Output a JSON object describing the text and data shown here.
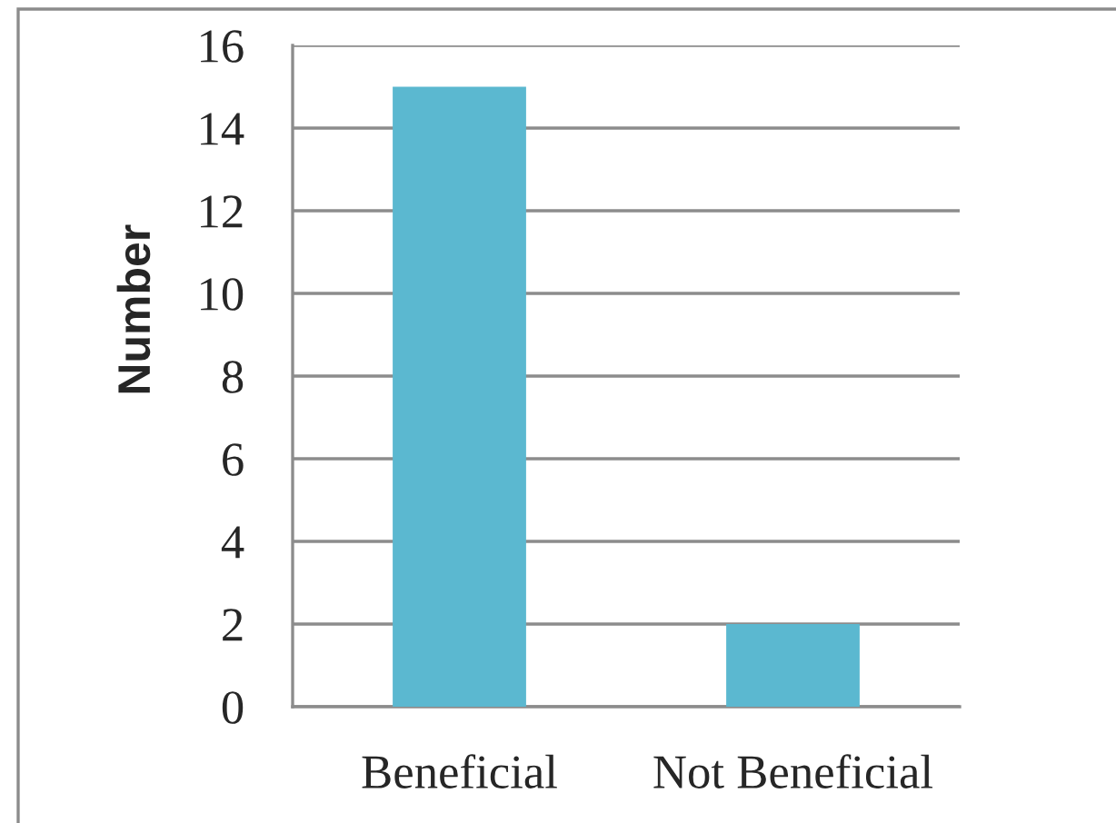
{
  "chart_data": {
    "type": "bar",
    "categories": [
      "Beneficial",
      "Not Beneficial"
    ],
    "values": [
      15,
      2
    ],
    "color": "#5bb8d0",
    "ylabel": "Number",
    "ylim": [
      0,
      16
    ],
    "yticks": [
      0,
      2,
      4,
      6,
      8,
      10,
      12,
      14,
      16
    ],
    "grid": "y",
    "legend": false
  }
}
